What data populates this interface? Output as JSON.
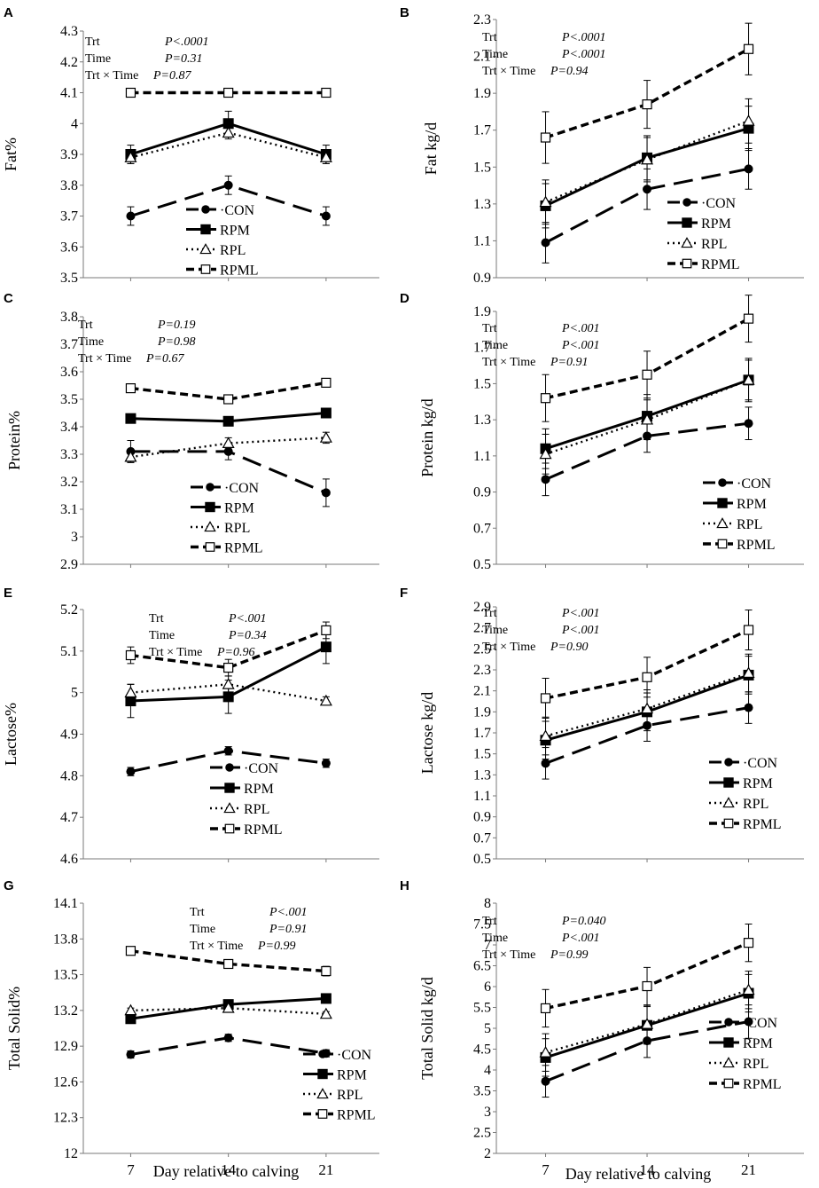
{
  "chart_data": [
    {
      "panel": "A",
      "type": "line",
      "ylabel": "Fat%",
      "ylim": [
        3.5,
        4.3
      ],
      "yticks": [
        "3.5",
        "3.6",
        "3.7",
        "3.8",
        "3.9",
        "4",
        "4.1",
        "4.2",
        "4.3"
      ],
      "x": [
        7,
        14,
        21
      ],
      "series": [
        {
          "name": "CON",
          "values": [
            3.7,
            3.8,
            3.7
          ],
          "err": [
            0.03,
            0.03,
            0.03
          ]
        },
        {
          "name": "RPM",
          "values": [
            3.9,
            4.0,
            3.9
          ],
          "err": [
            0.03,
            0.04,
            0.03
          ]
        },
        {
          "name": "RPL",
          "values": [
            3.89,
            3.97,
            3.89
          ],
          "err": [
            0.02,
            0.02,
            0.02
          ]
        },
        {
          "name": "RPML",
          "values": [
            4.1,
            4.1,
            4.1
          ],
          "err": [
            0,
            0,
            0
          ]
        }
      ],
      "stats": [
        {
          "label": "Trt",
          "p": "P<.0001"
        },
        {
          "label": "Time",
          "p": "P=0.31"
        },
        {
          "label": "Trt × Time",
          "p": "P=0.87"
        }
      ],
      "legend_position": "bottom-center"
    },
    {
      "panel": "B",
      "type": "line",
      "ylabel": "Fat kg/d",
      "ylim": [
        0.9,
        2.3
      ],
      "yticks": [
        "0.9",
        "1.1",
        "1.3",
        "1.5",
        "1.7",
        "1.9",
        "2.1",
        "2.3"
      ],
      "x": [
        7,
        14,
        21
      ],
      "series": [
        {
          "name": "CON",
          "values": [
            1.09,
            1.38,
            1.49
          ],
          "err": [
            0.11,
            0.11,
            0.11
          ]
        },
        {
          "name": "RPM",
          "values": [
            1.29,
            1.55,
            1.71
          ],
          "err": [
            0.12,
            0.12,
            0.12
          ]
        },
        {
          "name": "RPL",
          "values": [
            1.31,
            1.54,
            1.75
          ],
          "err": [
            0.12,
            0.12,
            0.12
          ]
        },
        {
          "name": "RPML",
          "values": [
            1.66,
            1.84,
            2.14
          ],
          "err": [
            0.14,
            0.13,
            0.14
          ]
        }
      ],
      "stats": [
        {
          "label": "Trt",
          "p": "P<.0001"
        },
        {
          "label": "Time",
          "p": "P<.0001"
        },
        {
          "label": "Trt × Time",
          "p": "P=0.94"
        }
      ],
      "legend_position": "bottom-right"
    },
    {
      "panel": "C",
      "type": "line",
      "ylabel": "Protein%",
      "ylim": [
        2.9,
        3.8
      ],
      "yticks": [
        "2.9",
        "3",
        "3.1",
        "3.2",
        "3.3",
        "3.4",
        "3.5",
        "3.6",
        "3.7",
        "3.8"
      ],
      "x": [
        7,
        14,
        21
      ],
      "series": [
        {
          "name": "CON",
          "values": [
            3.31,
            3.31,
            3.16
          ],
          "err": [
            0.04,
            0.03,
            0.05
          ]
        },
        {
          "name": "RPM",
          "values": [
            3.43,
            3.42,
            3.45
          ],
          "err": [
            0.01,
            0.01,
            0.01
          ]
        },
        {
          "name": "RPL",
          "values": [
            3.29,
            3.34,
            3.36
          ],
          "err": [
            0.02,
            0.02,
            0.02
          ]
        },
        {
          "name": "RPML",
          "values": [
            3.54,
            3.5,
            3.56
          ],
          "err": [
            0.01,
            0.01,
            0.01
          ]
        }
      ],
      "stats": [
        {
          "label": "Trt",
          "p": "P=0.19"
        },
        {
          "label": "Time",
          "p": "P=0.98"
        },
        {
          "label": "Trt × Time",
          "p": "P=0.67"
        }
      ],
      "legend_position": "bottom-center"
    },
    {
      "panel": "D",
      "type": "line",
      "ylabel": "Protein kg/d",
      "ylim": [
        0.5,
        1.9
      ],
      "yticks": [
        "0.5",
        "0.7",
        "0.9",
        "1.1",
        "1.3",
        "1.5",
        "1.7",
        "1.9"
      ],
      "x": [
        7,
        14,
        21
      ],
      "series": [
        {
          "name": "CON",
          "values": [
            0.97,
            1.21,
            1.28
          ],
          "err": [
            0.09,
            0.09,
            0.09
          ]
        },
        {
          "name": "RPM",
          "values": [
            1.14,
            1.32,
            1.52
          ],
          "err": [
            0.11,
            0.12,
            0.12
          ]
        },
        {
          "name": "RPL",
          "values": [
            1.11,
            1.3,
            1.52
          ],
          "err": [
            0.11,
            0.11,
            0.11
          ]
        },
        {
          "name": "RPML",
          "values": [
            1.42,
            1.55,
            1.86
          ],
          "err": [
            0.13,
            0.13,
            0.13
          ]
        }
      ],
      "stats": [
        {
          "label": "Trt",
          "p": "P<.001"
        },
        {
          "label": "Time",
          "p": "P<.001"
        },
        {
          "label": "Trt × Time",
          "p": "P=0.91"
        }
      ],
      "legend_position": "bottom-right"
    },
    {
      "panel": "E",
      "type": "line",
      "ylabel": "Lactose%",
      "ylim": [
        4.6,
        5.2
      ],
      "yticks": [
        "4.6",
        "4.7",
        "4.8",
        "4.9",
        "5",
        "5.1",
        "5.2"
      ],
      "x": [
        7,
        14,
        21
      ],
      "series": [
        {
          "name": "CON",
          "values": [
            4.81,
            4.86,
            4.83
          ],
          "err": [
            0.01,
            0.01,
            0.01
          ]
        },
        {
          "name": "RPM",
          "values": [
            4.98,
            4.99,
            5.11
          ],
          "err": [
            0.04,
            0.04,
            0.04
          ]
        },
        {
          "name": "RPL",
          "values": [
            5.0,
            5.02,
            4.98
          ],
          "err": [
            0.02,
            0.02,
            0.01
          ]
        },
        {
          "name": "RPML",
          "values": [
            5.09,
            5.06,
            5.15
          ],
          "err": [
            0.02,
            0.02,
            0.02
          ]
        }
      ],
      "stats": [
        {
          "label": "Trt",
          "p": "P<.001"
        },
        {
          "label": "Time",
          "p": "P=0.34"
        },
        {
          "label": "Trt × Time",
          "p": "P=0.96"
        }
      ],
      "legend_position": "bottom-center"
    },
    {
      "panel": "F",
      "type": "line",
      "ylabel": "Lactose kg/d",
      "ylim": [
        0.5,
        2.9
      ],
      "yticks": [
        "0.5",
        "0.7",
        "0.9",
        "1.1",
        "1.3",
        "1.5",
        "1.7",
        "1.9",
        "2.1",
        "2.3",
        "2.5",
        "2.7",
        "2.9"
      ],
      "x": [
        7,
        14,
        21
      ],
      "series": [
        {
          "name": "CON",
          "values": [
            1.41,
            1.77,
            1.94
          ],
          "err": [
            0.15,
            0.15,
            0.15
          ]
        },
        {
          "name": "RPM",
          "values": [
            1.63,
            1.9,
            2.25
          ],
          "err": [
            0.18,
            0.18,
            0.18
          ]
        },
        {
          "name": "RPL",
          "values": [
            1.67,
            1.93,
            2.27
          ],
          "err": [
            0.18,
            0.18,
            0.18
          ]
        },
        {
          "name": "RPML",
          "values": [
            2.03,
            2.23,
            2.68
          ],
          "err": [
            0.19,
            0.19,
            0.19
          ]
        }
      ],
      "stats": [
        {
          "label": "Trt",
          "p": "P<.001"
        },
        {
          "label": "Time",
          "p": "P<.001"
        },
        {
          "label": "Trt × Time",
          "p": "P=0.90"
        }
      ],
      "legend_position": "bottom-right"
    },
    {
      "panel": "G",
      "type": "line",
      "ylabel": "Total Solid%",
      "ylim": [
        12,
        14.1
      ],
      "yticks": [
        "12",
        "12.3",
        "12.6",
        "12.9",
        "13.2",
        "13.5",
        "13.8",
        "14.1"
      ],
      "x": [
        7,
        14,
        21
      ],
      "series": [
        {
          "name": "CON",
          "values": [
            12.83,
            12.97,
            12.84
          ],
          "err": [
            0.03,
            0.03,
            0.03
          ]
        },
        {
          "name": "RPM",
          "values": [
            13.13,
            13.25,
            13.3
          ],
          "err": [
            0.02,
            0.02,
            0.02
          ]
        },
        {
          "name": "RPL",
          "values": [
            13.2,
            13.22,
            13.17
          ],
          "err": [
            0.02,
            0.02,
            0.02
          ]
        },
        {
          "name": "RPML",
          "values": [
            13.7,
            13.59,
            13.53
          ],
          "err": [
            0.02,
            0.02,
            0.04
          ]
        }
      ],
      "stats": [
        {
          "label": "Trt",
          "p": "P<.001"
        },
        {
          "label": "Time",
          "p": "P=0.91"
        },
        {
          "label": "Trt × Time",
          "p": "P=0.99"
        }
      ],
      "legend_position": "bottom-right"
    },
    {
      "panel": "H",
      "type": "line",
      "ylabel": "Total Solid kg/d",
      "ylim": [
        2,
        8
      ],
      "yticks": [
        "2",
        "2.5",
        "3",
        "3.5",
        "4",
        "4.5",
        "5",
        "5.5",
        "6",
        "6.5",
        "7",
        "7.5",
        "8"
      ],
      "x": [
        7,
        14,
        21
      ],
      "series": [
        {
          "name": "CON",
          "values": [
            3.73,
            4.7,
            5.16
          ],
          "err": [
            0.38,
            0.4,
            0.4
          ]
        },
        {
          "name": "RPM",
          "values": [
            4.3,
            5.07,
            5.84
          ],
          "err": [
            0.45,
            0.45,
            0.45
          ]
        },
        {
          "name": "RPL",
          "values": [
            4.42,
            5.1,
            5.92
          ],
          "err": [
            0.45,
            0.45,
            0.45
          ]
        },
        {
          "name": "RPML",
          "values": [
            5.48,
            6.01,
            7.05
          ],
          "err": [
            0.45,
            0.45,
            0.45
          ]
        }
      ],
      "stats": [
        {
          "label": "Trt",
          "p": "P=0.040"
        },
        {
          "label": "Time",
          "p": "P<.001"
        },
        {
          "label": "Trt × Time",
          "p": "P=0.99"
        }
      ],
      "legend_position": "bottom-right"
    }
  ],
  "x_tick_labels": [
    "7",
    "14",
    "21"
  ],
  "xlabel_left": "Day relative to calving",
  "xlabel_right": "Day relative to calving",
  "legend_entries": {
    "CON": "·CON",
    "RPM": "RPM",
    "RPL": "RPL",
    "RPML": "RPML"
  }
}
